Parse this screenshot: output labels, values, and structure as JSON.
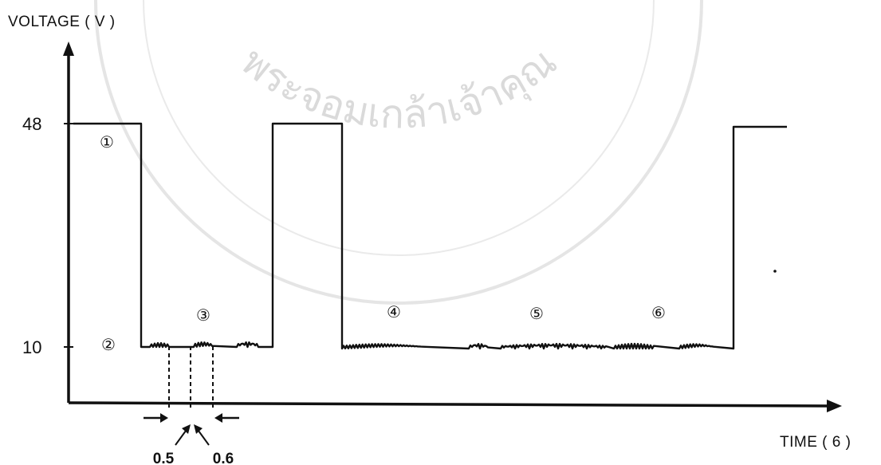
{
  "chart_data": {
    "type": "line",
    "title": "",
    "ylabel": "VOLTAGE ( V )",
    "xlabel": "TIME ( 6 )",
    "y_ticks": [
      {
        "value": 48,
        "label": "48"
      },
      {
        "value": 10,
        "label": "10"
      }
    ],
    "ylim": [
      0,
      60
    ],
    "grid": false,
    "legend": "none",
    "stages": [
      {
        "label": "①",
        "level": 48
      },
      {
        "label": "②",
        "level": 10
      },
      {
        "label": "③",
        "level": 10
      },
      {
        "label": "④",
        "level": 10
      },
      {
        "label": "⑤",
        "level": 10
      },
      {
        "label": "⑥",
        "level": 10
      }
    ],
    "dimension_annotations": [
      {
        "label": "0.5"
      },
      {
        "label": "0.6"
      }
    ]
  },
  "watermark": {
    "text": "พระจอมเกล้าเจ้าคุณ",
    "description_color": "#bdbdbd"
  },
  "colors": {
    "line": "#111111",
    "background": "#ffffff"
  }
}
